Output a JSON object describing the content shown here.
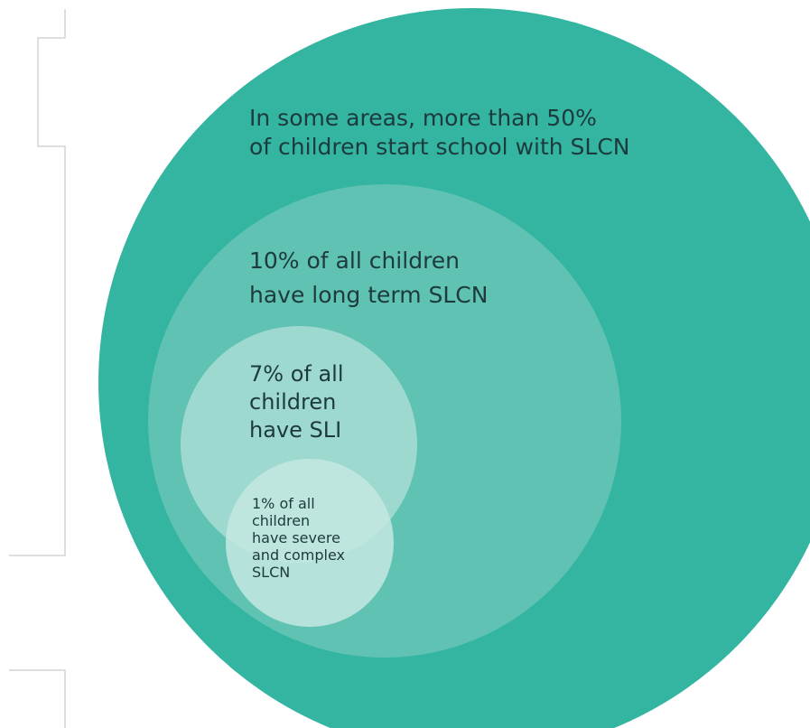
{
  "diagram": {
    "circles": [
      {
        "name": "outer",
        "lines": [
          "In some areas, more than 50%",
          "of children start school with SLCN"
        ],
        "fill": "#33b5a2"
      },
      {
        "name": "long-term",
        "lines": [
          "10% of all children",
          "have long term SLCN"
        ],
        "fill": "#5fc2b3"
      },
      {
        "name": "sli",
        "lines": [
          "7% of all",
          "children",
          "have SLI"
        ],
        "fill": "#a4dbd2"
      },
      {
        "name": "severe",
        "lines": [
          "1% of all",
          "children",
          "have severe",
          "and complex",
          "SLCN"
        ],
        "fill": "#c4e8e1"
      }
    ],
    "bracket_color": "#cfd5d4"
  }
}
